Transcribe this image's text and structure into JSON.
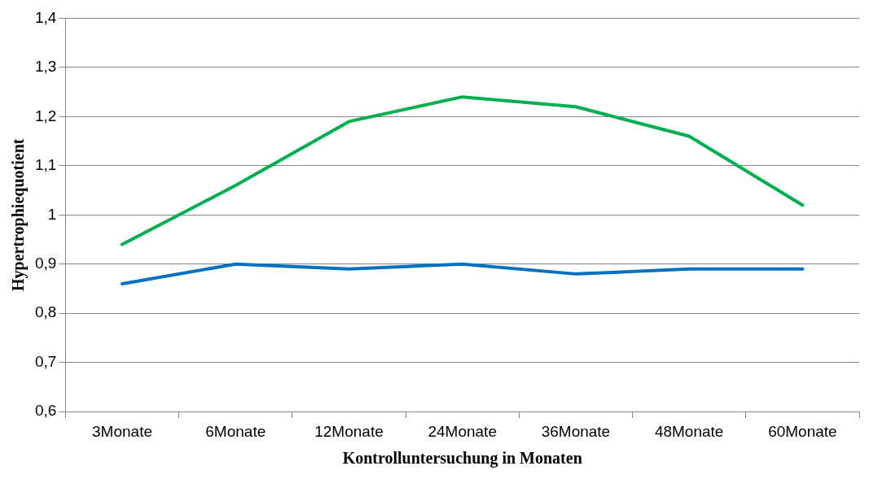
{
  "chart_data": {
    "type": "line",
    "xlabel": "Kontrolluntersuchung in Monaten",
    "ylabel": "Hypertrophiequotient",
    "categories": [
      "3Monate",
      "6Monate",
      "12Monate",
      "24Monate",
      "36Monate",
      "48Monate",
      "60Monate"
    ],
    "series": [
      {
        "color": "#00b050",
        "values": [
          0.94,
          1.06,
          1.19,
          1.24,
          1.22,
          1.16,
          1.02
        ]
      },
      {
        "color": "#0070c0",
        "values": [
          0.86,
          0.9,
          0.89,
          0.9,
          0.88,
          0.89,
          0.89
        ]
      }
    ],
    "ylim": [
      0.6,
      1.4
    ],
    "yticks": [
      {
        "value": 0.6,
        "label": "0,6"
      },
      {
        "value": 0.7,
        "label": "0,7"
      },
      {
        "value": 0.8,
        "label": "0,8"
      },
      {
        "value": 0.9,
        "label": "0,9"
      },
      {
        "value": 1,
        "label": "1"
      },
      {
        "value": 1.1,
        "label": "1,1"
      },
      {
        "value": 1.2,
        "label": "1,2"
      },
      {
        "value": 1.3,
        "label": "1,3"
      },
      {
        "value": 1.4,
        "label": "1,4"
      }
    ],
    "grid": "y",
    "legend": false,
    "marker": "none",
    "line_style": "solid"
  }
}
